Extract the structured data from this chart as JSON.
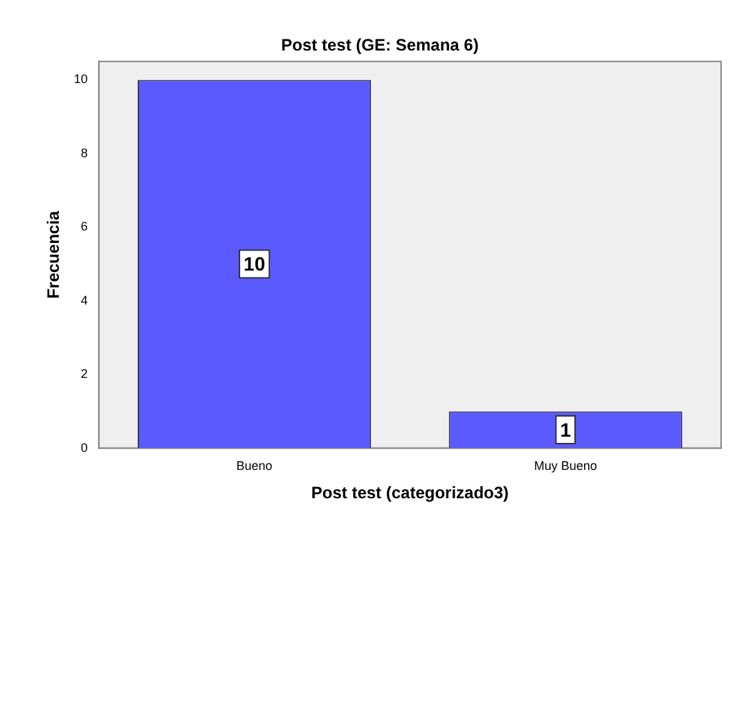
{
  "chart_data": {
    "type": "bar",
    "title": "Post test (GE: Semana 6)",
    "xlabel": "Post test (categorizado3)",
    "ylabel": "Frecuencia",
    "categories": [
      "Bueno",
      "Muy Bueno"
    ],
    "values": [
      10,
      1
    ],
    "color": "#5a5aff",
    "ylim": [
      0,
      10.5
    ],
    "yticks": [
      0,
      2,
      4,
      6,
      8,
      10
    ],
    "grid": false,
    "legend": false,
    "data_labels": true
  }
}
